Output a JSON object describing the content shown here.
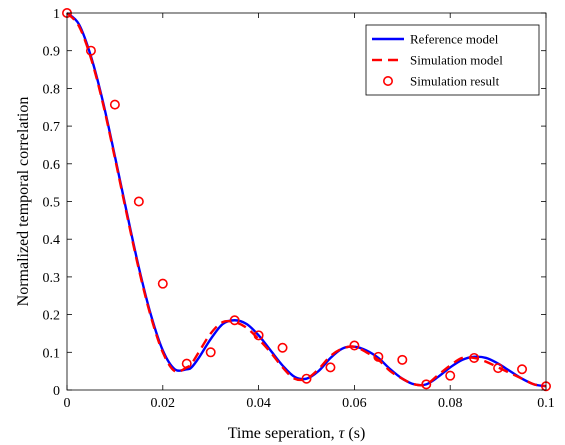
{
  "chart_data": {
    "type": "line",
    "xlabel_main": "Time seperation, ",
    "xlabel_symbol": "τ",
    "xlabel_unit": " (s)",
    "ylabel": "Normalized temporal correlation",
    "xlim": [
      0,
      0.1
    ],
    "ylim": [
      0,
      1
    ],
    "xticks": [
      "0",
      "0.02",
      "0.04",
      "0.06",
      "0.08",
      "0.1"
    ],
    "yticks": [
      "0",
      "0.1",
      "0.2",
      "0.3",
      "0.4",
      "0.5",
      "0.6",
      "0.7",
      "0.8",
      "0.9",
      "1"
    ],
    "grid": false,
    "legend_position": "top-right",
    "series": [
      {
        "name": "Reference model",
        "style": "solid",
        "color": "#0000ff",
        "x": [
          0,
          0.0025,
          0.005,
          0.0075,
          0.01,
          0.0125,
          0.015,
          0.0175,
          0.02,
          0.0225,
          0.025,
          0.026,
          0.0275,
          0.03,
          0.0325,
          0.035,
          0.0375,
          0.04,
          0.0425,
          0.045,
          0.0475,
          0.05,
          0.0525,
          0.055,
          0.0575,
          0.06,
          0.0625,
          0.065,
          0.0675,
          0.07,
          0.0725,
          0.075,
          0.0775,
          0.08,
          0.0825,
          0.085,
          0.0875,
          0.09,
          0.0925,
          0.095,
          0.0975,
          0.1
        ],
        "y": [
          1.0,
          0.97,
          0.885,
          0.765,
          0.62,
          0.47,
          0.325,
          0.2,
          0.105,
          0.055,
          0.055,
          0.06,
          0.085,
          0.135,
          0.175,
          0.185,
          0.175,
          0.145,
          0.105,
          0.065,
          0.035,
          0.03,
          0.05,
          0.085,
          0.11,
          0.115,
          0.105,
          0.085,
          0.055,
          0.03,
          0.015,
          0.015,
          0.035,
          0.06,
          0.08,
          0.088,
          0.085,
          0.07,
          0.05,
          0.03,
          0.015,
          0.01
        ]
      },
      {
        "name": "Simulation model",
        "style": "dashed",
        "color": "#ff0000",
        "x": [
          0,
          0.0025,
          0.005,
          0.0075,
          0.01,
          0.0125,
          0.015,
          0.0175,
          0.02,
          0.0225,
          0.025,
          0.026,
          0.0275,
          0.03,
          0.0325,
          0.035,
          0.0375,
          0.04,
          0.0425,
          0.045,
          0.0475,
          0.05,
          0.0525,
          0.055,
          0.0575,
          0.06,
          0.0625,
          0.065,
          0.0675,
          0.07,
          0.0725,
          0.075,
          0.0775,
          0.08,
          0.0825,
          0.085,
          0.0875,
          0.09,
          0.0925,
          0.095,
          0.0975,
          0.1
        ],
        "y": [
          1.0,
          0.965,
          0.88,
          0.76,
          0.615,
          0.465,
          0.32,
          0.195,
          0.1,
          0.05,
          0.06,
          0.07,
          0.1,
          0.15,
          0.18,
          0.18,
          0.165,
          0.135,
          0.1,
          0.06,
          0.03,
          0.03,
          0.055,
          0.09,
          0.11,
          0.115,
          0.1,
          0.08,
          0.05,
          0.03,
          0.015,
          0.015,
          0.04,
          0.065,
          0.085,
          0.085,
          0.075,
          0.06,
          0.045,
          0.03,
          0.015,
          0.01
        ]
      },
      {
        "name": "Simulation result",
        "style": "marker",
        "color": "#ff0000",
        "x": [
          0,
          0.005,
          0.01,
          0.015,
          0.02,
          0.025,
          0.03,
          0.035,
          0.04,
          0.045,
          0.05,
          0.055,
          0.06,
          0.065,
          0.07,
          0.075,
          0.08,
          0.085,
          0.09,
          0.095,
          0.1
        ],
        "y": [
          1.0,
          0.9,
          0.757,
          0.5,
          0.282,
          0.07,
          0.1,
          0.185,
          0.145,
          0.112,
          0.03,
          0.06,
          0.118,
          0.088,
          0.08,
          0.015,
          0.038,
          0.085,
          0.058,
          0.055,
          0.01
        ]
      }
    ]
  }
}
